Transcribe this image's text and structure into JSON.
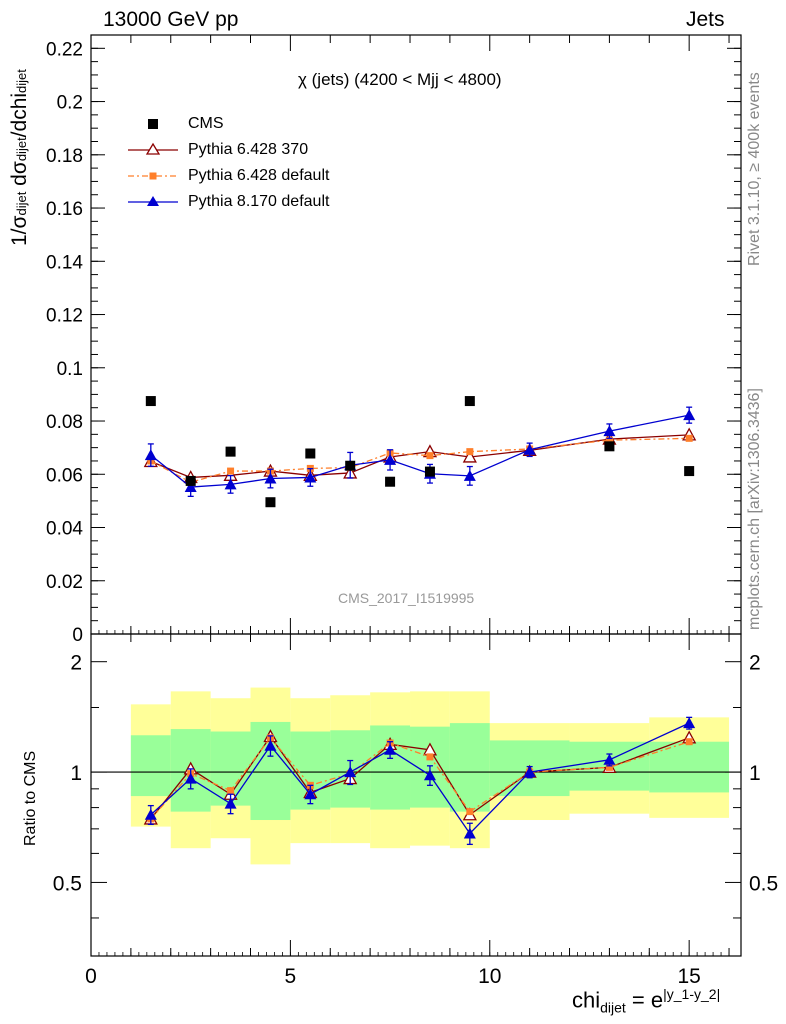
{
  "header": {
    "left": "13000 GeV pp",
    "right": "Jets"
  },
  "side_labels": {
    "top": "Rivet 3.1.10, ≥ 400k events",
    "bottom": "mcplots.cern.ch [arXiv:1306.3436]"
  },
  "chart_data": [
    {
      "type": "scatter",
      "title": "χ (jets) (4200 < Mjj < 4800)",
      "ylabel": "1/σdijet dσdijet/dchidijet",
      "xlabel": "",
      "watermark": "CMS_2017_I1519995",
      "xlim": [
        0,
        16.3
      ],
      "ylim": [
        0,
        0.225
      ],
      "yticks": [
        "0",
        "0.02",
        "0.04",
        "0.06",
        "0.08",
        "0.1",
        "0.12",
        "0.14",
        "0.16",
        "0.18",
        "0.2",
        "0.22"
      ],
      "legend_position": "top-left",
      "series": [
        {
          "name": "CMS",
          "color": "#000000",
          "marker": "square",
          "x": [
            1.5,
            2.5,
            3.5,
            4.5,
            5.5,
            6.5,
            7.5,
            8.5,
            9.5,
            13,
            15
          ],
          "values": [
            0.0875,
            0.0575,
            0.0685,
            0.0495,
            0.0678,
            0.0632,
            0.0572,
            0.061,
            0.0875,
            0.0705,
            0.0612
          ]
        },
        {
          "name": "Pythia 6.428 370",
          "color": "#8b0000",
          "marker": "open-triangle",
          "line": "solid",
          "x": [
            1.5,
            2.5,
            3.5,
            4.5,
            5.5,
            6.5,
            7.5,
            8.5,
            9.5,
            11,
            13,
            15
          ],
          "values": [
            0.0648,
            0.0588,
            0.0596,
            0.0612,
            0.0596,
            0.0605,
            0.0665,
            0.0685,
            0.0665,
            0.069,
            0.0732,
            0.0748
          ]
        },
        {
          "name": "Pythia 6.428 default",
          "color": "#ff7f2a",
          "marker": "filled-square-small",
          "line": "dash-dot",
          "x": [
            1.5,
            2.5,
            3.5,
            4.5,
            5.5,
            6.5,
            7.5,
            8.5,
            9.5,
            11,
            13,
            15
          ],
          "values": [
            0.065,
            0.057,
            0.0612,
            0.0612,
            0.0622,
            0.0625,
            0.068,
            0.067,
            0.0685,
            0.0695,
            0.0728,
            0.0735
          ]
        },
        {
          "name": "Pythia 8.170 default",
          "color": "#0000d0",
          "marker": "filled-triangle",
          "line": "solid",
          "x": [
            1.5,
            2.5,
            3.5,
            4.5,
            5.5,
            6.5,
            7.5,
            8.5,
            9.5,
            11,
            13,
            15
          ],
          "values": [
            0.0672,
            0.0552,
            0.0562,
            0.0584,
            0.0588,
            0.0634,
            0.0654,
            0.0602,
            0.0594,
            0.0692,
            0.0762,
            0.0822
          ],
          "errors": [
            0.0042,
            0.0035,
            0.0033,
            0.0035,
            0.0033,
            0.0048,
            0.0038,
            0.0035,
            0.0035,
            0.0025,
            0.0027,
            0.003
          ]
        }
      ]
    },
    {
      "type": "scatter",
      "ylabel": "Ratio to CMS",
      "xlabel": "chi_dijet = e^|y_1-y_2|",
      "xlabel_base": "chi",
      "xlabel_sub": "dijet",
      "xlabel_eq": " = e",
      "xlabel_sup": "|y_1-y_2|",
      "xlim": [
        0,
        16.3
      ],
      "ylim": [
        0.315,
        2.38
      ],
      "yticks": [
        "0.5",
        "1",
        "2"
      ],
      "xticks": [
        "0",
        "5",
        "10",
        "15"
      ],
      "reference_line": 1,
      "bands": {
        "edges": [
          1,
          2,
          3,
          4,
          5,
          6,
          7,
          8,
          9,
          10,
          12,
          14,
          16
        ],
        "green_low": [
          0.86,
          0.78,
          0.81,
          0.74,
          0.79,
          0.8,
          0.79,
          0.8,
          0.78,
          0.86,
          0.89,
          0.88
        ],
        "green_high": [
          1.26,
          1.31,
          1.29,
          1.37,
          1.29,
          1.3,
          1.34,
          1.33,
          1.36,
          1.22,
          1.21,
          1.21
        ],
        "yellow_low": [
          0.71,
          0.62,
          0.66,
          0.56,
          0.64,
          0.64,
          0.62,
          0.63,
          0.62,
          0.74,
          0.77,
          0.75
        ],
        "yellow_high": [
          1.53,
          1.66,
          1.59,
          1.7,
          1.59,
          1.62,
          1.65,
          1.66,
          1.66,
          1.36,
          1.36,
          1.41
        ],
        "green_color": "#99ff99",
        "yellow_color": "#ffff99"
      },
      "series": [
        {
          "name": "Pythia 6.428 370",
          "color": "#8b0000",
          "marker": "open-triangle",
          "line": "solid",
          "x": [
            1.5,
            2.5,
            3.5,
            4.5,
            5.5,
            6.5,
            7.5,
            8.5,
            9.5,
            11,
            13,
            15
          ],
          "values": [
            0.745,
            1.02,
            0.87,
            1.25,
            0.88,
            0.96,
            1.19,
            1.15,
            0.765,
            1.0,
            1.03,
            1.24
          ]
        },
        {
          "name": "Pythia 6.428 default",
          "color": "#ff7f2a",
          "marker": "filled-square-small",
          "line": "dash-dot",
          "x": [
            1.5,
            2.5,
            3.5,
            4.5,
            5.5,
            6.5,
            7.5,
            8.5,
            9.5,
            11,
            13,
            15
          ],
          "values": [
            0.745,
            0.99,
            0.89,
            1.24,
            0.92,
            0.99,
            1.2,
            1.1,
            0.78,
            1.0,
            1.03,
            1.21
          ]
        },
        {
          "name": "Pythia 8.170 default",
          "color": "#0000d0",
          "marker": "filled-triangle",
          "line": "solid",
          "x": [
            1.5,
            2.5,
            3.5,
            4.5,
            5.5,
            6.5,
            7.5,
            8.5,
            9.5,
            11,
            13,
            15
          ],
          "values": [
            0.765,
            0.96,
            0.82,
            1.18,
            0.87,
            1.0,
            1.15,
            0.98,
            0.68,
            1.0,
            1.08,
            1.36
          ],
          "errors": [
            0.045,
            0.06,
            0.05,
            0.075,
            0.05,
            0.075,
            0.06,
            0.06,
            0.045,
            0.035,
            0.04,
            0.05
          ]
        }
      ]
    }
  ]
}
